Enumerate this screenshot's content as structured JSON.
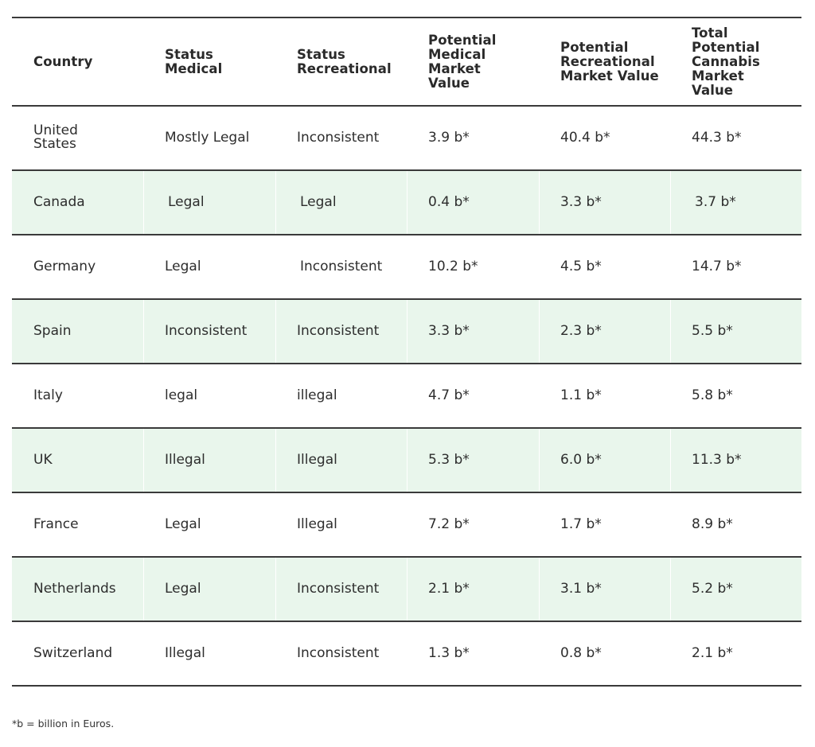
{
  "table": {
    "headers": [
      "Country",
      "Status Medical",
      "Status Recreational",
      "Potential Medical Market Value",
      "Potential Recreational Market Value",
      "Total Potential Cannabis Market Value"
    ],
    "rows": [
      {
        "country": "United States",
        "medical": "Mostly Legal",
        "recreational": "Inconsistent",
        "medical_value": "3.9 b*",
        "recreational_value": "40.4 b*",
        "total_value": "44.3 b*"
      },
      {
        "country": "Canada",
        "medical": "Legal",
        "recreational": "Legal",
        "medical_value": "0.4 b*",
        "recreational_value": "3.3 b*",
        "total_value": "3.7 b*"
      },
      {
        "country": "Germany",
        "medical": "Legal",
        "recreational": "Inconsistent",
        "medical_value": "10.2 b*",
        "recreational_value": "4.5 b*",
        "total_value": "14.7 b*"
      },
      {
        "country": "Spain",
        "medical": "Inconsistent",
        "recreational": "Inconsistent",
        "medical_value": "3.3 b*",
        "recreational_value": "2.3 b*",
        "total_value": "5.5 b*"
      },
      {
        "country": "Italy",
        "medical": "legal",
        "recreational": "illegal",
        "medical_value": "4.7 b*",
        "recreational_value": "1.1 b*",
        "total_value": "5.8 b*"
      },
      {
        "country": "UK",
        "medical": "Illegal",
        "recreational": "Illegal",
        "medical_value": "5.3 b*",
        "recreational_value": "6.0 b*",
        "total_value": "11.3 b*"
      },
      {
        "country": "France",
        "medical": "Legal",
        "recreational": "Illegal",
        "medical_value": "7.2 b*",
        "recreational_value": "1.7 b*",
        "total_value": "8.9 b*"
      },
      {
        "country": "Netherlands",
        "medical": "Legal",
        "recreational": "Inconsistent",
        "medical_value": "2.1 b*",
        "recreational_value": "3.1 b*",
        "total_value": "5.2 b*"
      },
      {
        "country": "Switzerland",
        "medical": "Illegal",
        "recreational": "Inconsistent",
        "medical_value": "1.3 b*",
        "recreational_value": "0.8 b*",
        "total_value": "2.1 b*"
      }
    ]
  },
  "footnote": "*b = billion in Euros.",
  "colors": {
    "alt_row_background": "#e9f6ec",
    "rule": "#3a3a3a",
    "text": "#2d2d2d"
  }
}
